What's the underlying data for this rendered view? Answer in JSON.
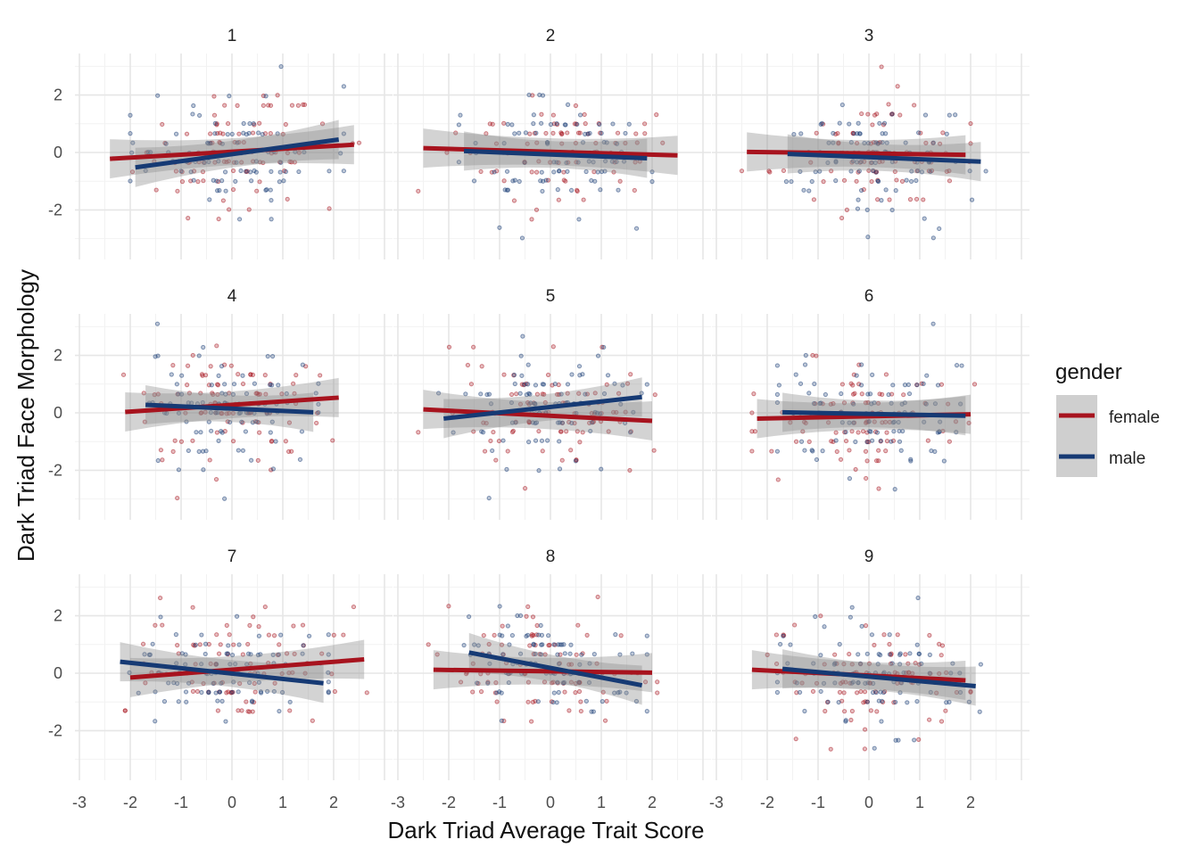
{
  "chart_data": {
    "type": "scatter",
    "xlabel": "Dark Triad Average Trait Score",
    "ylabel": "Dark Triad Face Morphology",
    "xlim": [
      -3,
      3
    ],
    "ylim": [
      -3.6,
      3.5
    ],
    "x_ticks": [
      -3,
      -2,
      -1,
      0,
      1,
      2
    ],
    "y_ticks": [
      -2,
      0,
      2
    ],
    "grid": true,
    "legend": {
      "title": "gender",
      "placement": "right",
      "entries": [
        {
          "label": "female",
          "color": "#a7131e"
        },
        {
          "label": "male",
          "color": "#163a74"
        }
      ]
    },
    "panels": [
      {
        "label": "1",
        "fits": {
          "female": {
            "x": [
              -2.4,
              2.4
            ],
            "y": [
              -0.22,
              0.27
            ]
          },
          "male": {
            "x": [
              -1.9,
              2.1
            ],
            "y": [
              -0.52,
              0.45
            ]
          }
        }
      },
      {
        "label": "2",
        "fits": {
          "female": {
            "x": [
              -2.5,
              2.5
            ],
            "y": [
              0.15,
              -0.1
            ]
          },
          "male": {
            "x": [
              -1.7,
              1.9
            ],
            "y": [
              0.05,
              -0.2
            ]
          }
        }
      },
      {
        "label": "3",
        "fits": {
          "female": {
            "x": [
              -2.4,
              1.9
            ],
            "y": [
              0.02,
              -0.08
            ]
          },
          "male": {
            "x": [
              -1.6,
              2.2
            ],
            "y": [
              -0.05,
              -0.32
            ]
          }
        }
      },
      {
        "label": "4",
        "fits": {
          "female": {
            "x": [
              -2.1,
              2.1
            ],
            "y": [
              0.03,
              0.53
            ]
          },
          "male": {
            "x": [
              -1.7,
              1.6
            ],
            "y": [
              0.28,
              0.02
            ]
          }
        }
      },
      {
        "label": "5",
        "fits": {
          "female": {
            "x": [
              -2.5,
              2.0
            ],
            "y": [
              0.12,
              -0.28
            ]
          },
          "male": {
            "x": [
              -2.1,
              1.8
            ],
            "y": [
              -0.2,
              0.55
            ]
          }
        }
      },
      {
        "label": "6",
        "fits": {
          "female": {
            "x": [
              -2.2,
              2.0
            ],
            "y": [
              -0.2,
              -0.05
            ]
          },
          "male": {
            "x": [
              -1.7,
              1.9
            ],
            "y": [
              0.02,
              -0.1
            ]
          }
        }
      },
      {
        "label": "7",
        "fits": {
          "female": {
            "x": [
              -2.0,
              2.6
            ],
            "y": [
              -0.15,
              0.48
            ]
          },
          "male": {
            "x": [
              -2.2,
              1.8
            ],
            "y": [
              0.4,
              -0.35
            ]
          }
        }
      },
      {
        "label": "8",
        "fits": {
          "female": {
            "x": [
              -2.3,
              2.0
            ],
            "y": [
              0.12,
              0.02
            ]
          },
          "male": {
            "x": [
              -1.6,
              1.8
            ],
            "y": [
              0.72,
              -0.42
            ]
          }
        }
      },
      {
        "label": "9",
        "fits": {
          "female": {
            "x": [
              -2.3,
              1.9
            ],
            "y": [
              0.12,
              -0.25
            ]
          },
          "male": {
            "x": [
              -1.7,
              2.1
            ],
            "y": [
              0.15,
              -0.45
            ]
          }
        }
      }
    ]
  }
}
